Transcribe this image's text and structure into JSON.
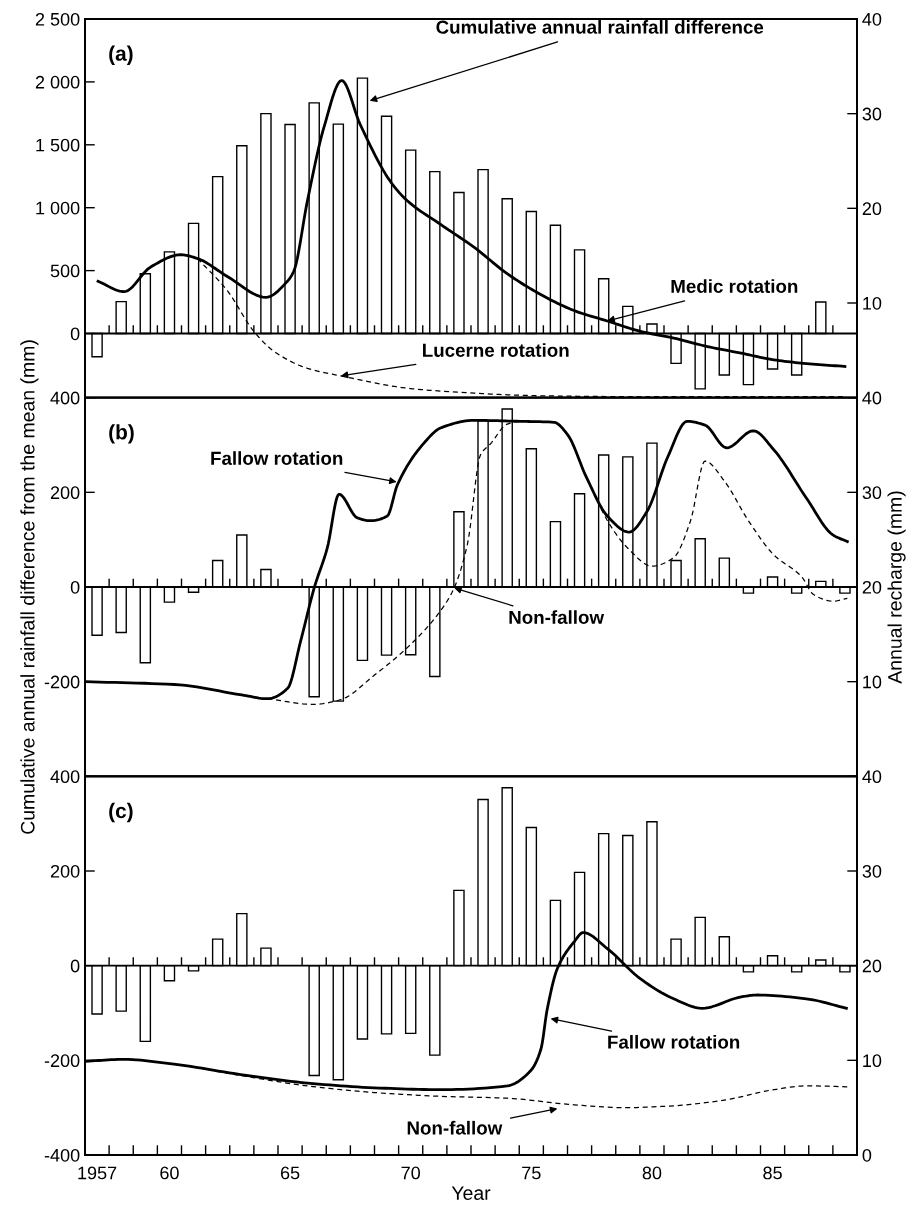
{
  "chart_data": [
    {
      "type": "bar",
      "xlim": [
        1956.5,
        1988.5
      ],
      "ylim": [
        -510,
        2500
      ],
      "y2lim": [
        0,
        40
      ],
      "tick_labels": "y",
      "xticks": [
        {
          "value": 1957.5,
          "label": null
        },
        {
          "value": 1958.5,
          "label": null
        },
        {
          "value": 1959.5,
          "label": null
        },
        {
          "value": 1960.5,
          "label": null
        },
        {
          "value": 1961.5,
          "label": null
        },
        {
          "value": 1962.5,
          "label": null
        },
        {
          "value": 1963.5,
          "label": null
        },
        {
          "value": 1964.5,
          "label": null
        },
        {
          "value": 1965.5,
          "label": null
        },
        {
          "value": 1966.5,
          "label": null
        },
        {
          "value": 1967.5,
          "label": null
        },
        {
          "value": 1968.5,
          "label": null
        },
        {
          "value": 1969.5,
          "label": null
        },
        {
          "value": 1970.5,
          "label": null
        },
        {
          "value": 1971.5,
          "label": null
        },
        {
          "value": 1972.5,
          "label": null
        },
        {
          "value": 1973.5,
          "label": null
        },
        {
          "value": 1974.5,
          "label": null
        },
        {
          "value": 1975.5,
          "label": null
        },
        {
          "value": 1976.5,
          "label": null
        },
        {
          "value": 1977.5,
          "label": null
        },
        {
          "value": 1978.5,
          "label": null
        },
        {
          "value": 1979.5,
          "label": null
        },
        {
          "value": 1980.5,
          "label": null
        },
        {
          "value": 1981.5,
          "label": null
        },
        {
          "value": 1982.5,
          "label": null
        },
        {
          "value": 1983.5,
          "label": null
        },
        {
          "value": 1984.5,
          "label": null
        },
        {
          "value": 1985.5,
          "label": null
        },
        {
          "value": 1986.5,
          "label": null
        },
        {
          "value": 1987.5,
          "label": null
        }
      ],
      "yticks": [
        0,
        500,
        {
          "value": 1000,
          "label": "1 000"
        },
        {
          "value": 1500,
          "label": "1 500"
        },
        {
          "value": 2000,
          "label": "2 000"
        },
        {
          "value": 2500,
          "label": "2 500"
        }
      ],
      "y2ticks": [
        10,
        20,
        30,
        40
      ],
      "ref_lines": [
        {
          "axis": "y",
          "value": 0
        }
      ],
      "annotations": [
        "(a)",
        {
          "text": "Cumulative annual rainfall difference",
          "x": 1968.3,
          "y": 1850
        },
        {
          "text": "Medic rotation",
          "x": 1978.15,
          "y": 100
        },
        {
          "text": "Lucerne rotation",
          "x": 1967.1,
          "y": -337
        }
      ],
      "series": [
        {
          "color": "#ffffff",
          "x": [
            1957,
            1958,
            1959,
            1960,
            1961,
            1962,
            1963,
            1964,
            1965,
            1966,
            1967,
            1968,
            1969,
            1970,
            1971,
            1972,
            1973,
            1974,
            1975,
            1976,
            1977,
            1978,
            1979,
            1980,
            1981,
            1982,
            1983,
            1984,
            1985,
            1986,
            1987
          ],
          "values": [
            -185,
            253,
            475,
            649,
            875,
            1247,
            1493,
            1748,
            1661,
            1833,
            1664,
            2030,
            1727,
            1458,
            1287,
            1121,
            1303,
            1071,
            970,
            860,
            665,
            435,
            216,
            76,
            -237,
            -440,
            -330,
            -406,
            -282,
            -330,
            251
          ]
        },
        {
          "type": "line",
          "axis": "y2",
          "color": "#000000",
          "line_style": "solid",
          "x": [
            1957.04,
            1958.12,
            1959.22,
            1960.47,
            1961.16,
            1962.4,
            1964.0,
            1964.89,
            1965.16,
            1965.72,
            1966.41,
            1967.14,
            1967.9,
            1969.17,
            1969.86,
            1971.24,
            1972.62,
            1974.0,
            1975.39,
            1976.77,
            1978.15,
            1979.53,
            1980.9,
            1982.3,
            1983.7,
            1985.05,
            1986.4,
            1988.0
          ],
          "values": [
            12.3,
            11.2,
            13.8,
            15.1,
            14.7,
            12.8,
            10.6,
            12.3,
            13.4,
            20.8,
            28.6,
            33.5,
            28.9,
            22.8,
            20.8,
            18.3,
            15.9,
            13.1,
            10.9,
            9.2,
            8.1,
            7.0,
            6.3,
            5.4,
            4.7,
            4.0,
            3.6,
            3.3
          ]
        },
        {
          "type": "line",
          "axis": "y2",
          "color": "#000000",
          "line_style": "dashed",
          "x": [
            1961.16,
            1962.4,
            1963.5,
            1964.33,
            1965.72,
            1967.1,
            1969.86,
            1971.24,
            1975.4,
            1980.0,
            1988.0
          ],
          "values": [
            14.7,
            11.3,
            7.0,
            4.9,
            3.1,
            2.3,
            1.0,
            0.7,
            0.2,
            0.1,
            0.1
          ]
        }
      ]
    },
    {
      "type": "bar",
      "xlim": [
        1956.5,
        1988.5
      ],
      "ylim": [
        -400,
        400
      ],
      "y2lim": [
        0,
        40
      ],
      "tick_labels": "y",
      "ylabel": "Cumulative annual rainfall difference from the mean (mm)",
      "y2label": "Annual recharge (mm)",
      "xticks": [
        {
          "value": 1957.5,
          "label": null
        },
        {
          "value": 1958.5,
          "label": null
        },
        {
          "value": 1959.5,
          "label": null
        },
        {
          "value": 1960.5,
          "label": null
        },
        {
          "value": 1961.5,
          "label": null
        },
        {
          "value": 1962.5,
          "label": null
        },
        {
          "value": 1963.5,
          "label": null
        },
        {
          "value": 1964.5,
          "label": null
        },
        {
          "value": 1965.5,
          "label": null
        },
        {
          "value": 1966.5,
          "label": null
        },
        {
          "value": 1967.5,
          "label": null
        },
        {
          "value": 1968.5,
          "label": null
        },
        {
          "value": 1969.5,
          "label": null
        },
        {
          "value": 1970.5,
          "label": null
        },
        {
          "value": 1971.5,
          "label": null
        },
        {
          "value": 1972.5,
          "label": null
        },
        {
          "value": 1973.5,
          "label": null
        },
        {
          "value": 1974.5,
          "label": null
        },
        {
          "value": 1975.5,
          "label": null
        },
        {
          "value": 1976.5,
          "label": null
        },
        {
          "value": 1977.5,
          "label": null
        },
        {
          "value": 1978.5,
          "label": null
        },
        {
          "value": 1979.5,
          "label": null
        },
        {
          "value": 1980.5,
          "label": null
        },
        {
          "value": 1981.5,
          "label": null
        },
        {
          "value": 1982.5,
          "label": null
        },
        {
          "value": 1983.5,
          "label": null
        },
        {
          "value": 1984.5,
          "label": null
        },
        {
          "value": 1985.5,
          "label": null
        },
        {
          "value": 1986.5,
          "label": null
        },
        {
          "value": 1987.5,
          "label": null
        }
      ],
      "yticks": [
        -200,
        0,
        200,
        400
      ],
      "y2ticks": [
        10,
        20,
        30,
        40
      ],
      "ref_lines": [
        {
          "axis": "y",
          "value": 0
        }
      ],
      "annotations": [
        "(b)",
        {
          "text": "Fallow rotation",
          "x": 1969.42,
          "y": 222
        },
        {
          "text": "Non-fallow",
          "x": 1971.8,
          "y": -2
        }
      ],
      "series": [
        {
          "color": "#ffffff",
          "x": [
            1957,
            1958,
            1959,
            1960,
            1961,
            1962,
            1963,
            1964,
            1965,
            1966,
            1967,
            1968,
            1969,
            1970,
            1971,
            1972,
            1973,
            1974,
            1975,
            1976,
            1977,
            1978,
            1979,
            1980,
            1981,
            1982,
            1983,
            1984,
            1985,
            1986,
            1987,
            1988
          ],
          "values": [
            -102,
            -96,
            -160,
            -32,
            -11,
            56,
            110,
            37,
            null,
            -232,
            -241,
            -155,
            -144,
            -143,
            -189,
            159,
            351,
            376,
            292,
            138,
            197,
            279,
            275,
            304,
            56,
            102,
            61,
            -13,
            21,
            -13,
            12,
            -13
          ]
        },
        {
          "type": "line",
          "axis": "y2",
          "color": "#000000",
          "line_style": "solid",
          "x": [
            1956.5,
            1960.2,
            1963.0,
            1964.06,
            1964.9,
            1965.44,
            1966.0,
            1966.54,
            1967.03,
            1967.79,
            1968.34,
            1969.03,
            1969.45,
            1970.55,
            1971.24,
            1972.62,
            1974.55,
            1975.94,
            1976.5,
            1977.3,
            1978.15,
            1979.05,
            1979.8,
            1980.65,
            1981.46,
            1982.2,
            1983.1,
            1984.2,
            1985.05,
            1986.4,
            1987.5,
            1988.1
          ],
          "values": [
            10.0,
            9.7,
            8.6,
            8.2,
            9.3,
            14.3,
            19.9,
            24.1,
            29.8,
            27.3,
            27.0,
            27.5,
            30.8,
            35.2,
            36.8,
            37.6,
            37.5,
            37.4,
            36.1,
            31.5,
            27.5,
            25.8,
            28.0,
            33.7,
            37.5,
            37.1,
            34.7,
            36.5,
            34.5,
            29.4,
            25.5,
            24.8
          ]
        },
        {
          "type": "line",
          "axis": "y2",
          "color": "#000000",
          "line_style": "dashed",
          "x": [
            1964.06,
            1966.0,
            1967.1,
            1968.5,
            1969.86,
            1971.24,
            1971.8,
            1972.35,
            1972.9,
            1973.3,
            1974.0,
            1974.55,
            1975.94,
            1976.5,
            1977.3,
            1978.3,
            1979.0,
            1980.0,
            1980.9,
            1981.6,
            1982.2,
            1983.0,
            1984.0,
            1985.05,
            1986.2,
            1986.7,
            1987.5,
            1988.1
          ],
          "values": [
            8.2,
            7.6,
            8.1,
            10.7,
            13.6,
            17.5,
            19.9,
            24.5,
            34.0,
            35.1,
            37.2,
            37.5,
            37.4,
            36.1,
            31.5,
            26.4,
            24.1,
            22.2,
            23.1,
            27.0,
            33.3,
            31.2,
            27.0,
            23.4,
            21.1,
            19.2,
            18.5,
            18.8
          ]
        }
      ]
    },
    {
      "type": "bar",
      "xlim": [
        1956.5,
        1988.5
      ],
      "ylim": [
        -400,
        400
      ],
      "y2lim": [
        0,
        40
      ],
      "xlabel": "Year",
      "xticks": [
        {
          "value": 1957,
          "label": "1957"
        },
        {
          "value": 1960,
          "label": "60"
        },
        {
          "value": 1965,
          "label": "65"
        },
        {
          "value": 1970,
          "label": "70"
        },
        {
          "value": 1975,
          "label": "75"
        },
        {
          "value": 1980,
          "label": "80"
        },
        {
          "value": 1985,
          "label": "85"
        },
        {
          "value": 1957.5,
          "label": null
        },
        {
          "value": 1958.5,
          "label": null
        },
        {
          "value": 1959.5,
          "label": null
        },
        {
          "value": 1960.5,
          "label": null
        },
        {
          "value": 1961.5,
          "label": null
        },
        {
          "value": 1962.5,
          "label": null
        },
        {
          "value": 1963.5,
          "label": null
        },
        {
          "value": 1964.5,
          "label": null
        },
        {
          "value": 1965.5,
          "label": null
        },
        {
          "value": 1966.5,
          "label": null
        },
        {
          "value": 1967.5,
          "label": null
        },
        {
          "value": 1968.5,
          "label": null
        },
        {
          "value": 1969.5,
          "label": null
        },
        {
          "value": 1970.5,
          "label": null
        },
        {
          "value": 1971.5,
          "label": null
        },
        {
          "value": 1972.5,
          "label": null
        },
        {
          "value": 1973.5,
          "label": null
        },
        {
          "value": 1974.5,
          "label": null
        },
        {
          "value": 1975.5,
          "label": null
        },
        {
          "value": 1976.5,
          "label": null
        },
        {
          "value": 1977.5,
          "label": null
        },
        {
          "value": 1978.5,
          "label": null
        },
        {
          "value": 1979.5,
          "label": null
        },
        {
          "value": 1980.5,
          "label": null
        },
        {
          "value": 1981.5,
          "label": null
        },
        {
          "value": 1982.5,
          "label": null
        },
        {
          "value": 1983.5,
          "label": null
        },
        {
          "value": 1984.5,
          "label": null
        },
        {
          "value": 1985.5,
          "label": null
        },
        {
          "value": 1986.5,
          "label": null
        },
        {
          "value": 1987.5,
          "label": null
        }
      ],
      "yticks": [
        -400,
        -200,
        0,
        200,
        400
      ],
      "y2ticks": [
        0,
        10,
        20,
        30,
        40
      ],
      "ref_lines": [
        {
          "axis": "y",
          "value": 0
        }
      ],
      "annotations": [
        "(c)",
        {
          "text": "Fallow rotation",
          "x": 1975.8,
          "y": -112
        },
        {
          "text": "Non-fallow",
          "x": 1976.08,
          "y": -302
        }
      ],
      "series": [
        {
          "color": "#ffffff",
          "x": [
            1957,
            1958,
            1959,
            1960,
            1961,
            1962,
            1963,
            1964,
            1965,
            1966,
            1967,
            1968,
            1969,
            1970,
            1971,
            1972,
            1973,
            1974,
            1975,
            1976,
            1977,
            1978,
            1979,
            1980,
            1981,
            1982,
            1983,
            1984,
            1985,
            1986,
            1987,
            1988
          ],
          "values": [
            -102,
            -96,
            -160,
            -32,
            -11,
            56,
            110,
            37,
            null,
            -232,
            -241,
            -155,
            -144,
            -143,
            -189,
            159,
            351,
            376,
            292,
            138,
            197,
            279,
            275,
            304,
            56,
            102,
            61,
            -13,
            21,
            -13,
            12,
            -13
          ]
        },
        {
          "type": "line",
          "axis": "y2",
          "color": "#000000",
          "line_style": "solid",
          "x": [
            1956.53,
            1958.12,
            1960.19,
            1962.95,
            1965.72,
            1968.48,
            1971.24,
            1974.0,
            1974.97,
            1975.4,
            1975.66,
            1976.08,
            1976.77,
            1977.15,
            1978.15,
            1979.53,
            1980.9,
            1982.08,
            1983.7,
            1984.36,
            1986.4,
            1988.06
          ],
          "values": [
            9.9,
            10.1,
            9.6,
            8.5,
            7.6,
            7.1,
            6.9,
            7.3,
            8.9,
            11.2,
            15.4,
            19.7,
            22.5,
            23.5,
            21.8,
            18.6,
            16.5,
            15.5,
            16.7,
            16.9,
            16.5,
            15.5
          ]
        },
        {
          "type": "line",
          "axis": "y2",
          "color": "#000000",
          "line_style": "dashed",
          "x": [
            1956.53,
            1958.12,
            1960.19,
            1962.95,
            1965.72,
            1968.48,
            1971.24,
            1974.0,
            1976.77,
            1978.85,
            1980.9,
            1983.0,
            1985.05,
            1986.4,
            1988.2
          ],
          "values": [
            9.9,
            10.1,
            9.6,
            8.4,
            7.3,
            6.6,
            6.2,
            6.0,
            5.3,
            5.0,
            5.2,
            5.8,
            6.9,
            7.3,
            7.2
          ]
        }
      ]
    }
  ]
}
